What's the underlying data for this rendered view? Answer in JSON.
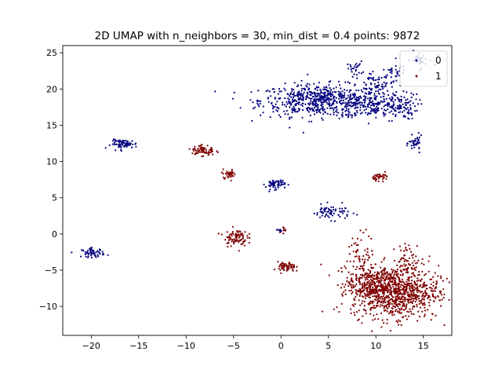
{
  "chart_data": {
    "type": "scatter",
    "title": "2D UMAP with n_neighbors = 30, min_dist = 0.4 points: 9872",
    "xlabel": "",
    "ylabel": "",
    "xlim": [
      -23,
      18
    ],
    "ylim": [
      -14,
      26
    ],
    "x_ticks": [
      -20,
      -15,
      -10,
      -5,
      0,
      5,
      10,
      15
    ],
    "y_ticks": [
      -10,
      -5,
      0,
      5,
      10,
      15,
      20,
      25
    ],
    "grid": false,
    "legend": {
      "position": "upper-right"
    },
    "series": [
      {
        "name": "0",
        "color": "#00007f",
        "clusters": [
          {
            "cx": 4.2,
            "cy": 18.4,
            "sx": 3.2,
            "sy": 1.1,
            "n": 620
          },
          {
            "cx": 9.5,
            "cy": 17.8,
            "sx": 1.4,
            "sy": 0.9,
            "n": 120
          },
          {
            "cx": 12.2,
            "cy": 17.6,
            "sx": 1.1,
            "sy": 0.9,
            "n": 110
          },
          {
            "cx": 10.5,
            "cy": 20.5,
            "sx": 1.2,
            "sy": 1.0,
            "n": 70
          },
          {
            "cx": 7.8,
            "cy": 22.8,
            "sx": 0.4,
            "sy": 0.5,
            "n": 25
          },
          {
            "cx": 12.0,
            "cy": 22.5,
            "sx": 0.6,
            "sy": 0.4,
            "n": 25
          },
          {
            "cx": 14.5,
            "cy": 24.0,
            "sx": 0.8,
            "sy": 0.6,
            "n": 30
          },
          {
            "cx": -16.5,
            "cy": 12.4,
            "sx": 0.7,
            "sy": 0.3,
            "n": 70
          },
          {
            "cx": -19.8,
            "cy": -2.6,
            "sx": 0.6,
            "sy": 0.3,
            "n": 60
          },
          {
            "cx": -0.6,
            "cy": 6.9,
            "sx": 0.5,
            "sy": 0.35,
            "n": 60
          },
          {
            "cx": 5.3,
            "cy": 3.0,
            "sx": 1.0,
            "sy": 0.5,
            "n": 70
          },
          {
            "cx": 14.2,
            "cy": 12.5,
            "sx": 0.35,
            "sy": 0.5,
            "n": 40
          },
          {
            "cx": -0.2,
            "cy": 0.4,
            "sx": 0.3,
            "sy": 0.2,
            "n": 8
          }
        ]
      },
      {
        "name": "1",
        "color": "#7f0000",
        "clusters": [
          {
            "cx": 12.0,
            "cy": -8.0,
            "sx": 2.3,
            "sy": 1.8,
            "n": 900
          },
          {
            "cx": 9.2,
            "cy": -6.8,
            "sx": 1.2,
            "sy": 1.1,
            "n": 180
          },
          {
            "cx": 8.5,
            "cy": -3.0,
            "sx": 0.7,
            "sy": 1.6,
            "n": 60
          },
          {
            "cx": 13.5,
            "cy": -3.5,
            "sx": 0.8,
            "sy": 1.0,
            "n": 60
          },
          {
            "cx": -4.8,
            "cy": -0.5,
            "sx": 0.6,
            "sy": 0.6,
            "n": 90
          },
          {
            "cx": -8.2,
            "cy": 11.5,
            "sx": 0.6,
            "sy": 0.4,
            "n": 70
          },
          {
            "cx": -5.5,
            "cy": 8.3,
            "sx": 0.4,
            "sy": 0.3,
            "n": 35
          },
          {
            "cx": 0.6,
            "cy": -4.6,
            "sx": 0.45,
            "sy": 0.35,
            "n": 70
          },
          {
            "cx": 10.6,
            "cy": 7.9,
            "sx": 0.45,
            "sy": 0.25,
            "n": 40
          },
          {
            "cx": 0.3,
            "cy": 0.4,
            "sx": 0.2,
            "sy": 0.2,
            "n": 8
          }
        ]
      }
    ]
  }
}
